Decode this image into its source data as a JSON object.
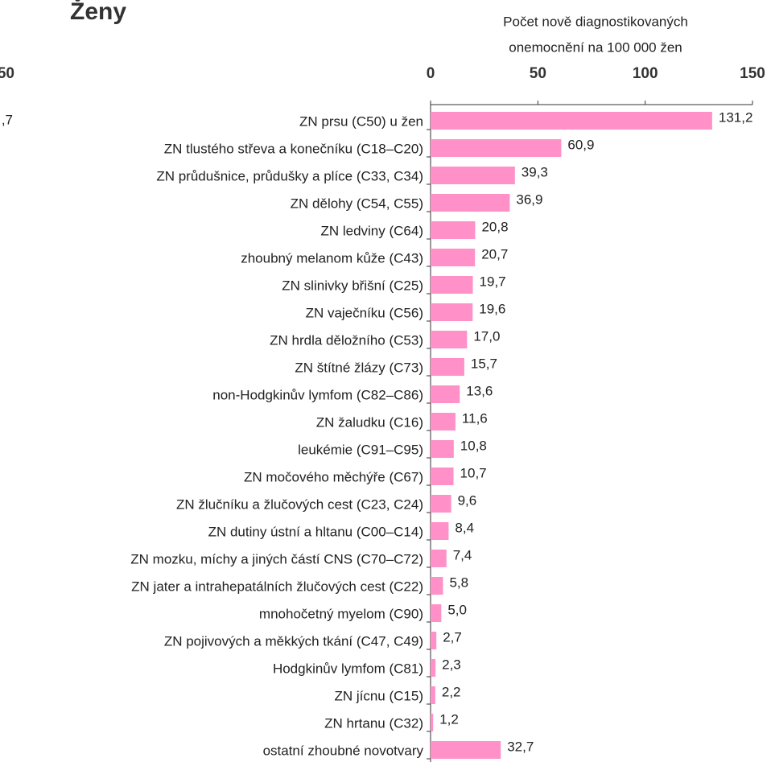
{
  "chart_data": {
    "type": "bar",
    "orientation": "horizontal",
    "title": "Ženy",
    "x_axis_title": [
      "Počet nově diagnostikovaných",
      "onemocnění na 100 000 žen"
    ],
    "categories": [
      "ZN prsu (C50) u žen",
      "ZN tlustého střeva a konečníku (C18–C20)",
      "ZN průdušnice, průdušky a plíce (C33, C34)",
      "ZN dělohy (C54, C55)",
      "ZN ledviny (C64)",
      "zhoubný melanom kůže (C43)",
      "ZN slinivky břišní (C25)",
      "ZN vaječníku (C56)",
      "ZN hrdla děložního (C53)",
      "ZN štítné žlázy (C73)",
      "non-Hodgkinův lymfom (C82–C86)",
      "ZN žaludku (C16)",
      "leukémie (C91–C95)",
      "ZN močového měchýře (C67)",
      "ZN žlučníku a žlučových cest (C23, C24)",
      "ZN dutiny ústní a hltanu (C00–C14)",
      "ZN mozku, míchy a jiných částí CNS (C70–C72)",
      "ZN jater a intrahepatálních žlučových cest (C22)",
      "mnohočetný myelom (C90)",
      "ZN pojivových a měkkých tkání (C47, C49)",
      "Hodgkinův lymfom (C81)",
      "ZN jícnu (C15)",
      "ZN hrtanu (C32)",
      "ostatní zhoubné novotvary"
    ],
    "values": [
      131.2,
      60.9,
      39.3,
      36.9,
      20.8,
      20.7,
      19.7,
      19.6,
      17.0,
      15.7,
      13.6,
      11.6,
      10.8,
      10.7,
      9.6,
      8.4,
      7.4,
      5.8,
      5.0,
      2.7,
      2.3,
      2.2,
      1.2,
      32.7
    ],
    "value_labels": [
      "131,2",
      "60,9",
      "39,3",
      "36,9",
      "20,8",
      "20,7",
      "19,7",
      "19,6",
      "17,0",
      "15,7",
      "13,6",
      "11,6",
      "10,8",
      "10,7",
      "9,6",
      "8,4",
      "7,4",
      "5,8",
      "5,0",
      "2,7",
      "2,3",
      "2,2",
      "1,2",
      "32,7"
    ],
    "color": "#ff90c8",
    "xlim": [
      0,
      150
    ],
    "xticks": [
      0,
      50,
      100,
      150
    ]
  },
  "cropped_left": {
    "tick": "50",
    "value_label": ",7"
  }
}
